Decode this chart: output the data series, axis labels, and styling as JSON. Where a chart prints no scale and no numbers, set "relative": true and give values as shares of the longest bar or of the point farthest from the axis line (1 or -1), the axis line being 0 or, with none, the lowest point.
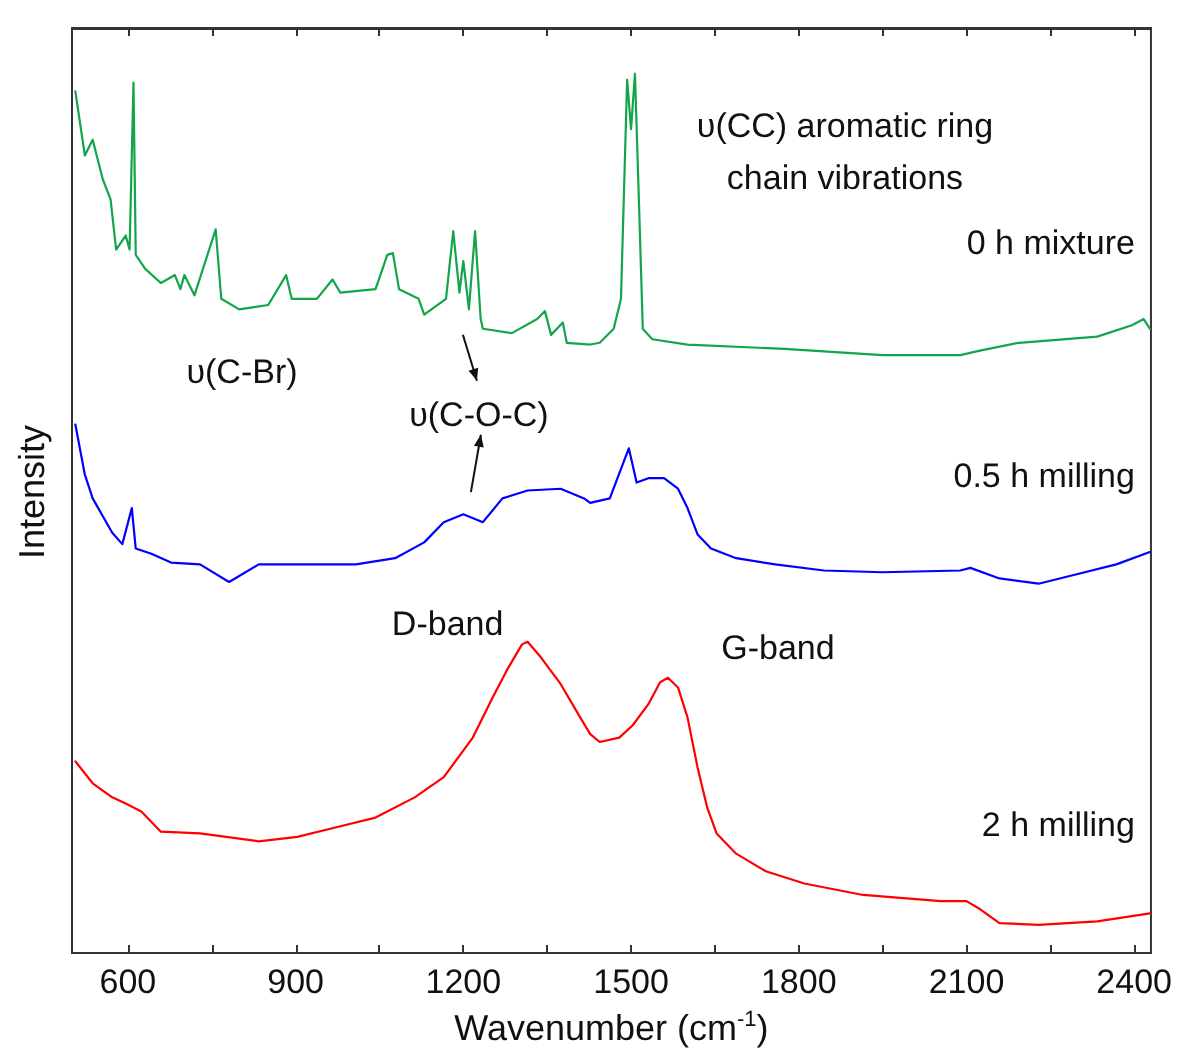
{
  "chart_data": {
    "type": "line",
    "relative": true,
    "xlabel": "Wavenumber (cm$^{-1}$)",
    "ylabel": "Intensity",
    "xlim": [
      500,
      2430
    ],
    "xticks": [
      600,
      {
        "value": 750,
        "label": null
      },
      900,
      {
        "value": 1050,
        "label": null
      },
      1200,
      {
        "value": 1350,
        "label": null
      },
      1500,
      {
        "value": 1650,
        "label": null
      },
      1800,
      {
        "value": 1950,
        "label": null
      },
      2100,
      {
        "value": 2250,
        "label": null
      },
      2400
    ],
    "grid": false,
    "legend": false,
    "marker": "none",
    "line_style": "solid",
    "annotations": [
      {
        "text": "υ(CC) aromatic ring\nchain vibrations",
        "x": 1507,
        "y": 1.0
      },
      "υ(C-Br)",
      {
        "text": "υ(C-O-C)",
        "x": 1235,
        "y": 0.71
      },
      {
        "text": "D-band",
        "x": 1315,
        "y": 0.354
      },
      {
        "text": "G-band",
        "x": 1566,
        "y": 0.313
      }
    ],
    "series": [
      {
        "name": "0 h mixture",
        "color": "#13a54b",
        "x": [
          506,
          523,
          537,
          555,
          569,
          579,
          596,
          603,
          610,
          614,
          631,
          659,
          684,
          694,
          701,
          719,
          757,
          767,
          799,
          851,
          883,
          893,
          938,
          966,
          980,
          1043,
          1064,
          1074,
          1085,
          1120,
          1130,
          1169,
          1182,
          1193,
          1200,
          1210,
          1221,
          1231,
          1235,
          1287,
          1332,
          1346,
          1357,
          1378,
          1385,
          1427,
          1444,
          1469,
          1482,
          1493,
          1500,
          1507,
          1514,
          1521,
          1538,
          1601,
          1775,
          1950,
          2089,
          2124,
          2194,
          2334,
          2396,
          2417,
          2428
        ],
        "values": [
          0.98,
          0.907,
          0.925,
          0.88,
          0.857,
          0.8,
          0.816,
          0.8,
          0.99,
          0.794,
          0.778,
          0.762,
          0.771,
          0.755,
          0.771,
          0.748,
          0.823,
          0.744,
          0.732,
          0.737,
          0.771,
          0.744,
          0.744,
          0.766,
          0.751,
          0.755,
          0.794,
          0.796,
          0.755,
          0.744,
          0.726,
          0.744,
          0.821,
          0.751,
          0.787,
          0.732,
          0.821,
          0.721,
          0.71,
          0.705,
          0.721,
          0.73,
          0.703,
          0.717,
          0.694,
          0.692,
          0.694,
          0.71,
          0.744,
          0.993,
          0.937,
          1.0,
          0.857,
          0.71,
          0.698,
          0.692,
          0.687,
          0.68,
          0.68,
          0.685,
          0.694,
          0.701,
          0.714,
          0.721,
          0.71
        ]
      },
      {
        "name": "0.5 h milling",
        "color": "#0000ff",
        "x": [
          506,
          523,
          537,
          572,
          590,
          607,
          614,
          642,
          677,
          729,
          781,
          834,
          903,
          1008,
          1078,
          1130,
          1165,
          1200,
          1235,
          1270,
          1315,
          1374,
          1416,
          1427,
          1462,
          1496,
          1510,
          1531,
          1559,
          1584,
          1601,
          1619,
          1643,
          1688,
          1758,
          1845,
          1950,
          2089,
          2107,
          2159,
          2229,
          2299,
          2368,
          2428
        ],
        "values": [
          0.601,
          0.544,
          0.517,
          0.478,
          0.465,
          0.506,
          0.46,
          0.454,
          0.444,
          0.442,
          0.422,
          0.442,
          0.442,
          0.442,
          0.449,
          0.467,
          0.49,
          0.499,
          0.49,
          0.517,
          0.526,
          0.528,
          0.517,
          0.512,
          0.517,
          0.574,
          0.535,
          0.54,
          0.54,
          0.528,
          0.506,
          0.476,
          0.46,
          0.449,
          0.442,
          0.435,
          0.433,
          0.435,
          0.438,
          0.426,
          0.42,
          0.431,
          0.442,
          0.456
        ]
      },
      {
        "name": "2 h milling",
        "color": "#ff0000",
        "x": [
          506,
          537,
          572,
          596,
          624,
          659,
          729,
          834,
          903,
          973,
          1043,
          1113,
          1165,
          1217,
          1252,
          1280,
          1305,
          1315,
          1339,
          1374,
          1409,
          1427,
          1444,
          1479,
          1503,
          1531,
          1552,
          1566,
          1584,
          1601,
          1619,
          1636,
          1653,
          1688,
          1741,
          1810,
          1915,
          2054,
          2100,
          2124,
          2159,
          2229,
          2334,
          2428
        ],
        "values": [
          0.218,
          0.193,
          0.177,
          0.17,
          0.161,
          0.138,
          0.136,
          0.127,
          0.132,
          0.143,
          0.154,
          0.177,
          0.2,
          0.245,
          0.29,
          0.324,
          0.351,
          0.354,
          0.336,
          0.306,
          0.268,
          0.249,
          0.24,
          0.245,
          0.259,
          0.283,
          0.308,
          0.313,
          0.302,
          0.268,
          0.211,
          0.166,
          0.136,
          0.113,
          0.093,
          0.079,
          0.066,
          0.059,
          0.059,
          0.05,
          0.034,
          0.032,
          0.036,
          0.045
        ]
      }
    ]
  }
}
